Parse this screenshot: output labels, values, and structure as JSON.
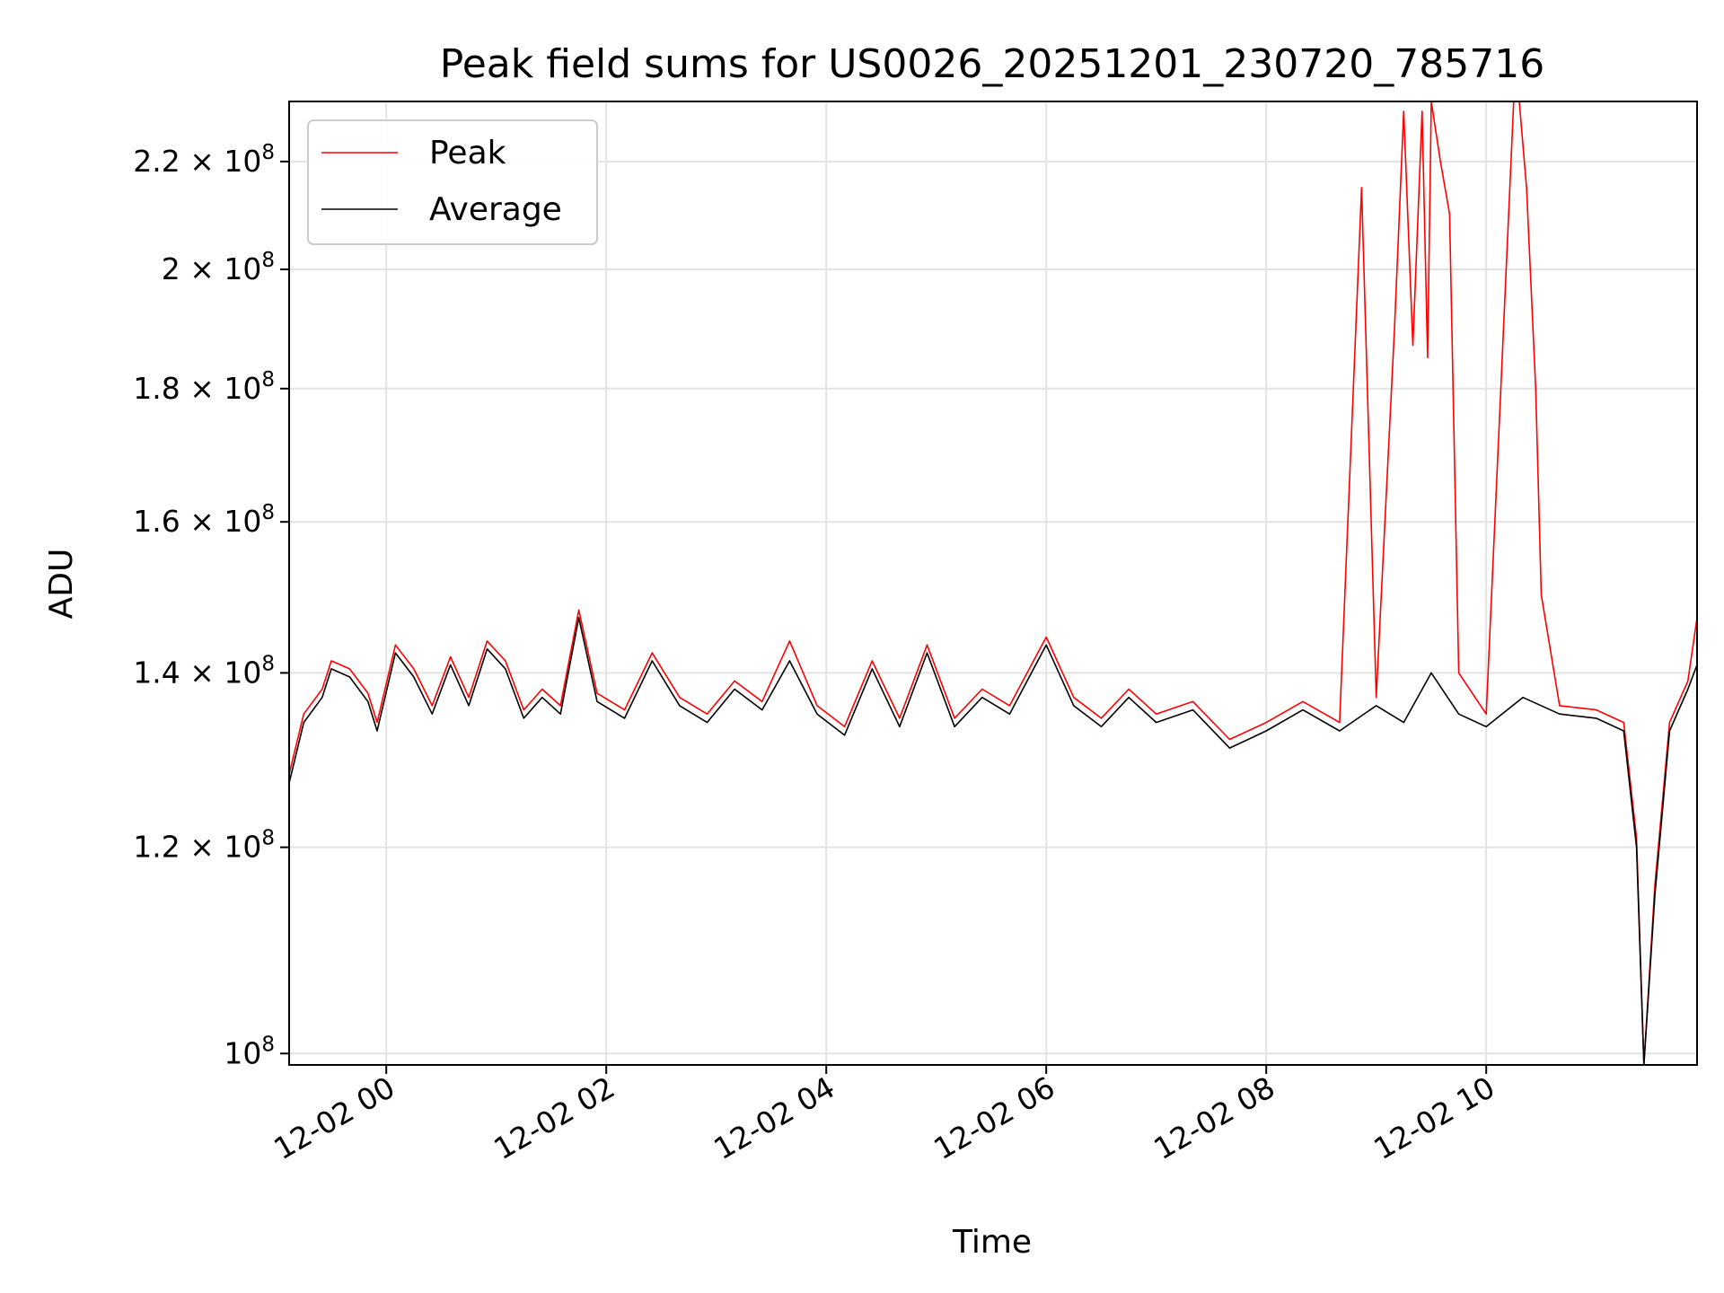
{
  "chart_data": {
    "type": "line",
    "title": "Peak field sums for US0026_20251201_230720_785716",
    "xlabel": "Time",
    "ylabel": "ADU",
    "yscale": "log",
    "grid": true,
    "legend_position": "top-left",
    "xlim": [
      "2025-12-01T23:07",
      "2025-12-02T11:55"
    ],
    "ylim": [
      99000000,
      232000000
    ],
    "x_ticks": [
      {
        "t": "2025-12-02T00:00",
        "label": "12-02 00"
      },
      {
        "t": "2025-12-02T02:00",
        "label": "12-02 02"
      },
      {
        "t": "2025-12-02T04:00",
        "label": "12-02 04"
      },
      {
        "t": "2025-12-02T06:00",
        "label": "12-02 06"
      },
      {
        "t": "2025-12-02T08:00",
        "label": "12-02 08"
      },
      {
        "t": "2025-12-02T10:00",
        "label": "12-02 10"
      }
    ],
    "y_ticks": [
      {
        "value": 100000000,
        "mant": "10",
        "exp": "8"
      },
      {
        "value": 120000000,
        "mant": "1.2 × 10",
        "exp": "8"
      },
      {
        "value": 140000000,
        "mant": "1.4 × 10",
        "exp": "8"
      },
      {
        "value": 160000000,
        "mant": "1.6 × 10",
        "exp": "8"
      },
      {
        "value": 180000000,
        "mant": "1.8 × 10",
        "exp": "8"
      },
      {
        "value": 200000000,
        "mant": "2 × 10",
        "exp": "8"
      },
      {
        "value": 220000000,
        "mant": "2.2 × 10",
        "exp": "8"
      }
    ],
    "series": [
      {
        "name": "Average",
        "color": "#000000",
        "points": [
          [
            "2025-12-01T23:07",
            127000000
          ],
          [
            "2025-12-01T23:15",
            134000000
          ],
          [
            "2025-12-01T23:25",
            137000000
          ],
          [
            "2025-12-01T23:30",
            140500000
          ],
          [
            "2025-12-01T23:40",
            139500000
          ],
          [
            "2025-12-01T23:50",
            136500000
          ],
          [
            "2025-12-01T23:55",
            133000000
          ],
          [
            "2025-12-02T00:05",
            142500000
          ],
          [
            "2025-12-02T00:15",
            139500000
          ],
          [
            "2025-12-02T00:25",
            135000000
          ],
          [
            "2025-12-02T00:35",
            141000000
          ],
          [
            "2025-12-02T00:45",
            136000000
          ],
          [
            "2025-12-02T00:55",
            143000000
          ],
          [
            "2025-12-02T01:05",
            140500000
          ],
          [
            "2025-12-02T01:15",
            134500000
          ],
          [
            "2025-12-02T01:25",
            137000000
          ],
          [
            "2025-12-02T01:35",
            135000000
          ],
          [
            "2025-12-02T01:45",
            147000000
          ],
          [
            "2025-12-02T01:55",
            136500000
          ],
          [
            "2025-12-02T02:10",
            134500000
          ],
          [
            "2025-12-02T02:25",
            141500000
          ],
          [
            "2025-12-02T02:40",
            136000000
          ],
          [
            "2025-12-02T02:55",
            134000000
          ],
          [
            "2025-12-02T03:10",
            138000000
          ],
          [
            "2025-12-02T03:25",
            135500000
          ],
          [
            "2025-12-02T03:40",
            141500000
          ],
          [
            "2025-12-02T03:55",
            135000000
          ],
          [
            "2025-12-02T04:10",
            132500000
          ],
          [
            "2025-12-02T04:25",
            140500000
          ],
          [
            "2025-12-02T04:40",
            133500000
          ],
          [
            "2025-12-02T04:55",
            142500000
          ],
          [
            "2025-12-02T05:10",
            133500000
          ],
          [
            "2025-12-02T05:25",
            137000000
          ],
          [
            "2025-12-02T05:40",
            135000000
          ],
          [
            "2025-12-02T06:00",
            143500000
          ],
          [
            "2025-12-02T06:15",
            136000000
          ],
          [
            "2025-12-02T06:30",
            133500000
          ],
          [
            "2025-12-02T06:45",
            137000000
          ],
          [
            "2025-12-02T07:00",
            134000000
          ],
          [
            "2025-12-02T07:20",
            135500000
          ],
          [
            "2025-12-02T07:40",
            131000000
          ],
          [
            "2025-12-02T08:00",
            133000000
          ],
          [
            "2025-12-02T08:20",
            135500000
          ],
          [
            "2025-12-02T08:40",
            133000000
          ],
          [
            "2025-12-02T09:00",
            136000000
          ],
          [
            "2025-12-02T09:15",
            134000000
          ],
          [
            "2025-12-02T09:30",
            140000000
          ],
          [
            "2025-12-02T09:45",
            135000000
          ],
          [
            "2025-12-02T10:00",
            133500000
          ],
          [
            "2025-12-02T10:20",
            137000000
          ],
          [
            "2025-12-02T10:40",
            135000000
          ],
          [
            "2025-12-02T11:00",
            134500000
          ],
          [
            "2025-12-02T11:15",
            133000000
          ],
          [
            "2025-12-02T11:22",
            120000000
          ],
          [
            "2025-12-02T11:26",
            99000000
          ],
          [
            "2025-12-02T11:32",
            115000000
          ],
          [
            "2025-12-02T11:40",
            133000000
          ],
          [
            "2025-12-02T11:50",
            138000000
          ],
          [
            "2025-12-02T11:55",
            141000000
          ]
        ]
      },
      {
        "name": "Peak",
        "color": "#ff0000",
        "points": [
          [
            "2025-12-01T23:07",
            128000000
          ],
          [
            "2025-12-01T23:15",
            135000000
          ],
          [
            "2025-12-01T23:25",
            138000000
          ],
          [
            "2025-12-01T23:30",
            141500000
          ],
          [
            "2025-12-01T23:40",
            140500000
          ],
          [
            "2025-12-01T23:50",
            137500000
          ],
          [
            "2025-12-01T23:55",
            134000000
          ],
          [
            "2025-12-02T00:05",
            143500000
          ],
          [
            "2025-12-02T00:15",
            140500000
          ],
          [
            "2025-12-02T00:25",
            136000000
          ],
          [
            "2025-12-02T00:35",
            142000000
          ],
          [
            "2025-12-02T00:45",
            137000000
          ],
          [
            "2025-12-02T00:55",
            144000000
          ],
          [
            "2025-12-02T01:05",
            141500000
          ],
          [
            "2025-12-02T01:15",
            135500000
          ],
          [
            "2025-12-02T01:25",
            138000000
          ],
          [
            "2025-12-02T01:35",
            136000000
          ],
          [
            "2025-12-02T01:45",
            148000000
          ],
          [
            "2025-12-02T01:55",
            137500000
          ],
          [
            "2025-12-02T02:10",
            135500000
          ],
          [
            "2025-12-02T02:25",
            142500000
          ],
          [
            "2025-12-02T02:40",
            137000000
          ],
          [
            "2025-12-02T02:55",
            135000000
          ],
          [
            "2025-12-02T03:10",
            139000000
          ],
          [
            "2025-12-02T03:25",
            136500000
          ],
          [
            "2025-12-02T03:40",
            144000000
          ],
          [
            "2025-12-02T03:55",
            136000000
          ],
          [
            "2025-12-02T04:10",
            133500000
          ],
          [
            "2025-12-02T04:25",
            141500000
          ],
          [
            "2025-12-02T04:40",
            134500000
          ],
          [
            "2025-12-02T04:55",
            143500000
          ],
          [
            "2025-12-02T05:10",
            134500000
          ],
          [
            "2025-12-02T05:25",
            138000000
          ],
          [
            "2025-12-02T05:40",
            136000000
          ],
          [
            "2025-12-02T06:00",
            144500000
          ],
          [
            "2025-12-02T06:15",
            137000000
          ],
          [
            "2025-12-02T06:30",
            134500000
          ],
          [
            "2025-12-02T06:45",
            138000000
          ],
          [
            "2025-12-02T07:00",
            135000000
          ],
          [
            "2025-12-02T07:20",
            136500000
          ],
          [
            "2025-12-02T07:40",
            132000000
          ],
          [
            "2025-12-02T08:00",
            134000000
          ],
          [
            "2025-12-02T08:20",
            136500000
          ],
          [
            "2025-12-02T08:40",
            134000000
          ],
          [
            "2025-12-02T08:52",
            215000000
          ],
          [
            "2025-12-02T09:00",
            137000000
          ],
          [
            "2025-12-02T09:10",
            190000000
          ],
          [
            "2025-12-02T09:15",
            230000000
          ],
          [
            "2025-12-02T09:20",
            187000000
          ],
          [
            "2025-12-02T09:25",
            230000000
          ],
          [
            "2025-12-02T09:28",
            185000000
          ],
          [
            "2025-12-02T09:30",
            232000000
          ],
          [
            "2025-12-02T09:35",
            220000000
          ],
          [
            "2025-12-02T09:40",
            210000000
          ],
          [
            "2025-12-02T09:45",
            140000000
          ],
          [
            "2025-12-02T10:00",
            135000000
          ],
          [
            "2025-12-02T10:15",
            232000000
          ],
          [
            "2025-12-02T10:18",
            232000000
          ],
          [
            "2025-12-02T10:22",
            215000000
          ],
          [
            "2025-12-02T10:27",
            180000000
          ],
          [
            "2025-12-02T10:30",
            150000000
          ],
          [
            "2025-12-02T10:40",
            136000000
          ],
          [
            "2025-12-02T11:00",
            135500000
          ],
          [
            "2025-12-02T11:15",
            134000000
          ],
          [
            "2025-12-02T11:22",
            121000000
          ],
          [
            "2025-12-02T11:26",
            99000000
          ],
          [
            "2025-12-02T11:32",
            116000000
          ],
          [
            "2025-12-02T11:40",
            134000000
          ],
          [
            "2025-12-02T11:50",
            139000000
          ],
          [
            "2025-12-02T11:55",
            147000000
          ]
        ]
      }
    ]
  }
}
